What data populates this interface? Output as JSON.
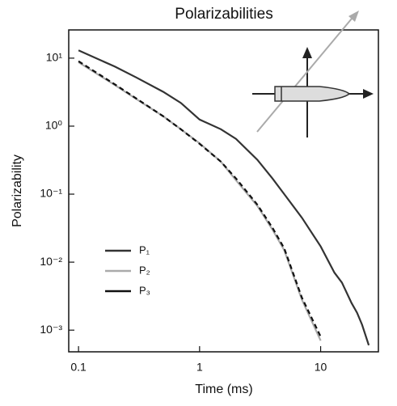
{
  "chart_data": {
    "type": "line",
    "title": "Polarizabilities",
    "x_label": "Time (ms)",
    "y_label": "Polarizability",
    "xscale": "log",
    "yscale": "log",
    "legend": "lower left",
    "xlim": [
      0.083,
      30
    ],
    "xticks": [
      0.1,
      1,
      10
    ],
    "ylim": [
      0.00048,
      26
    ],
    "yticks": [
      {
        "value": 10,
        "label": "10¹"
      },
      {
        "value": 1,
        "label": "10⁰"
      },
      {
        "value": 0.1,
        "label": "10⁻¹"
      },
      {
        "value": 0.01,
        "label": "10⁻²"
      },
      {
        "value": 0.001,
        "label": "10⁻³"
      }
    ],
    "x": [
      0.1,
      0.2,
      0.3,
      0.5,
      0.7,
      1,
      1.5,
      2,
      3,
      4,
      5,
      7,
      10,
      13,
      15,
      18,
      20,
      22,
      25
    ],
    "series": [
      {
        "name": "P₁",
        "color": "#333333",
        "dashed": false,
        "values": [
          13,
          7.5,
          5.2,
          3.2,
          2.2,
          1.25,
          0.9,
          0.65,
          0.32,
          0.17,
          0.1,
          0.045,
          0.017,
          0.007,
          0.005,
          0.0025,
          0.0018,
          0.0012,
          0.0006
        ]
      },
      {
        "name": "P₂",
        "color": "#aaaaaa",
        "dashed": false,
        "values": [
          8.7,
          4.0,
          2.5,
          1.4,
          0.9,
          0.56,
          0.3,
          0.16,
          0.067,
          0.03,
          0.015,
          0.0028,
          0.0007,
          null,
          null,
          null,
          null,
          null,
          null
        ]
      },
      {
        "name": "P₃",
        "color": "#111111",
        "dashed": true,
        "values": [
          9,
          4.1,
          2.55,
          1.4,
          0.9,
          0.55,
          0.3,
          0.17,
          0.07,
          0.032,
          0.016,
          0.003,
          0.0008,
          null,
          null,
          null,
          null,
          null,
          null
        ]
      }
    ]
  }
}
